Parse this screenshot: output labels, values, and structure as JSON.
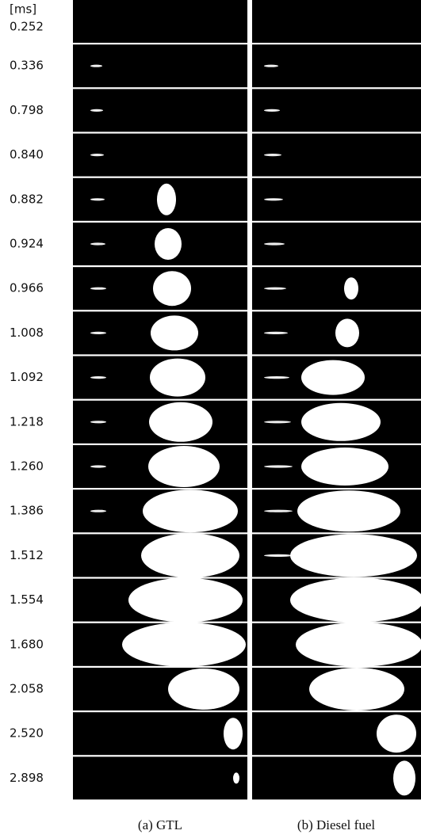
{
  "unit_label": "[ms]",
  "times": [
    "0.252",
    "0.336",
    "0.798",
    "0.840",
    "0.882",
    "0.924",
    "0.966",
    "1.008",
    "1.092",
    "1.218",
    "1.260",
    "1.386",
    "1.512",
    "1.554",
    "1.680",
    "2.058",
    "2.520",
    "2.898"
  ],
  "captions": [
    "(a) GTL",
    "(b) Diesel fuel"
  ]
}
